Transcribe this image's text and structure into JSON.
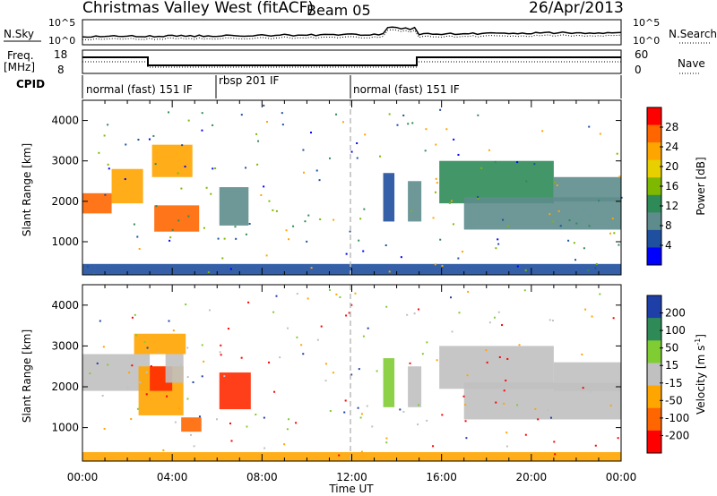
{
  "header": {
    "site": "Christmas Valley West (fitACF)",
    "beam": "Beam 05",
    "date": "26/Apr/2013"
  },
  "top_panels": {
    "nsky_label": "N.Sky",
    "nsky_ticks": [
      "10^5",
      "10^0"
    ],
    "nsearch_label": "N.Search",
    "nsearch_ticks": [
      "10^5",
      "10^0"
    ],
    "freq_label_line1": "Freq.",
    "freq_label_line2": "[MHz]",
    "freq_ticks": [
      "18",
      "8"
    ],
    "nave_label": "Nave",
    "nave_ticks": [
      "60",
      "0"
    ],
    "cpid_label": "CPID",
    "cpid_segments": [
      {
        "label": "normal (fast) 151 IF",
        "start_h": 0,
        "end_h": 6
      },
      {
        "label": "rbsp 201 IF",
        "start_h": 6,
        "end_h": 12
      },
      {
        "label": "normal (fast) 151 IF",
        "start_h": 12,
        "end_h": 24
      }
    ]
  },
  "chart_data": [
    {
      "type": "heatmap",
      "title": "Power",
      "xlabel": "",
      "ylabel": "Slant Range [km]",
      "xlim": [
        0,
        24
      ],
      "ylim": [
        180,
        4500
      ],
      "y_ticks": [
        "4000",
        "3000",
        "2000",
        "1000"
      ],
      "colorbar_label": "Power [dB]",
      "colorbar_ticks": [
        "28",
        "24",
        "20",
        "16",
        "12",
        "8",
        "4"
      ],
      "colorbar_colors": [
        "#ff0000",
        "#ff6600",
        "#ffa500",
        "#e8d000",
        "#7fb800",
        "#2e8b57",
        "#5e8c8c",
        "#1f4f9f",
        "#0000ff"
      ],
      "grid": "vertical dashed line at 12:00",
      "regions": [
        {
          "x0": 0.0,
          "x1": 1.3,
          "y0": 1700,
          "y1": 2200,
          "level": 26
        },
        {
          "x0": 1.3,
          "x1": 2.7,
          "y0": 1950,
          "y1": 2800,
          "level": 22
        },
        {
          "x0": 3.1,
          "x1": 4.9,
          "y0": 2600,
          "y1": 3400,
          "level": 22
        },
        {
          "x0": 3.2,
          "x1": 5.2,
          "y0": 1250,
          "y1": 1900,
          "level": 26
        },
        {
          "x0": 6.1,
          "x1": 7.4,
          "y0": 1400,
          "y1": 2350,
          "level": 10
        },
        {
          "x0": 13.4,
          "x1": 13.9,
          "y0": 1500,
          "y1": 2700,
          "level": 6
        },
        {
          "x0": 14.5,
          "x1": 15.1,
          "y0": 1500,
          "y1": 2500,
          "level": 8
        },
        {
          "x0": 15.9,
          "x1": 21.0,
          "y0": 1950,
          "y1": 3000,
          "level": 12
        },
        {
          "x0": 17.0,
          "x1": 24.0,
          "y0": 1300,
          "y1": 2100,
          "level": 10
        },
        {
          "x0": 21.0,
          "x1": 24.0,
          "y0": 2000,
          "y1": 2600,
          "level": 8
        },
        {
          "x0": 0.0,
          "x1": 24.0,
          "y0": 180,
          "y1": 450,
          "level": 6
        }
      ]
    },
    {
      "type": "heatmap",
      "title": "Velocity",
      "xlabel": "Time UT",
      "ylabel": "Slant Range [km]",
      "xlim": [
        0,
        24
      ],
      "ylim": [
        180,
        4500
      ],
      "x_ticks": [
        "00:00",
        "04:00",
        "08:00",
        "12:00",
        "16:00",
        "20:00",
        "00:00"
      ],
      "y_ticks": [
        "4000",
        "3000",
        "2000",
        "1000"
      ],
      "colorbar_label": "Velocity [m s",
      "colorbar_unit_sup": "-1",
      "colorbar_unit_close": "]",
      "colorbar_ticks": [
        "200",
        "100",
        "50",
        "15",
        "-15",
        "-50",
        "-100",
        "-200"
      ],
      "colorbar_colors": [
        "#1f3fa8",
        "#2e8b57",
        "#7fcc33",
        "#c0c0c0",
        "#ffa500",
        "#ff6600",
        "#ff0000"
      ],
      "grid": "vertical dashed line at 12:00",
      "regions": [
        {
          "x0": 0.0,
          "x1": 3.0,
          "y0": 1900,
          "y1": 2800,
          "color": "#c0c0c0"
        },
        {
          "x0": 2.3,
          "x1": 4.6,
          "y0": 2800,
          "y1": 3300,
          "color": "#ffa500"
        },
        {
          "x0": 2.5,
          "x1": 4.5,
          "y0": 1300,
          "y1": 2500,
          "color": "#ffa500"
        },
        {
          "x0": 3.0,
          "x1": 4.0,
          "y0": 1900,
          "y1": 2500,
          "color": "#ff2a00"
        },
        {
          "x0": 3.7,
          "x1": 4.5,
          "y0": 2100,
          "y1": 2800,
          "color": "#c0c0c0"
        },
        {
          "x0": 6.1,
          "x1": 7.5,
          "y0": 1450,
          "y1": 2350,
          "color": "#ff2a00"
        },
        {
          "x0": 4.4,
          "x1": 5.3,
          "y0": 900,
          "y1": 1250,
          "color": "#ff6600"
        },
        {
          "x0": 13.4,
          "x1": 13.9,
          "y0": 1500,
          "y1": 2700,
          "color": "#7fcc33"
        },
        {
          "x0": 14.5,
          "x1": 15.1,
          "y0": 1500,
          "y1": 2500,
          "color": "#c0c0c0"
        },
        {
          "x0": 15.9,
          "x1": 21.0,
          "y0": 1950,
          "y1": 3000,
          "color": "#c0c0c0"
        },
        {
          "x0": 17.0,
          "x1": 24.0,
          "y0": 1200,
          "y1": 2100,
          "color": "#c0c0c0"
        },
        {
          "x0": 21.0,
          "x1": 24.0,
          "y0": 1900,
          "y1": 2600,
          "color": "#c0c0c0"
        },
        {
          "x0": 0.0,
          "x1": 24.0,
          "y0": 180,
          "y1": 400,
          "color": "#ffa500"
        }
      ]
    }
  ]
}
